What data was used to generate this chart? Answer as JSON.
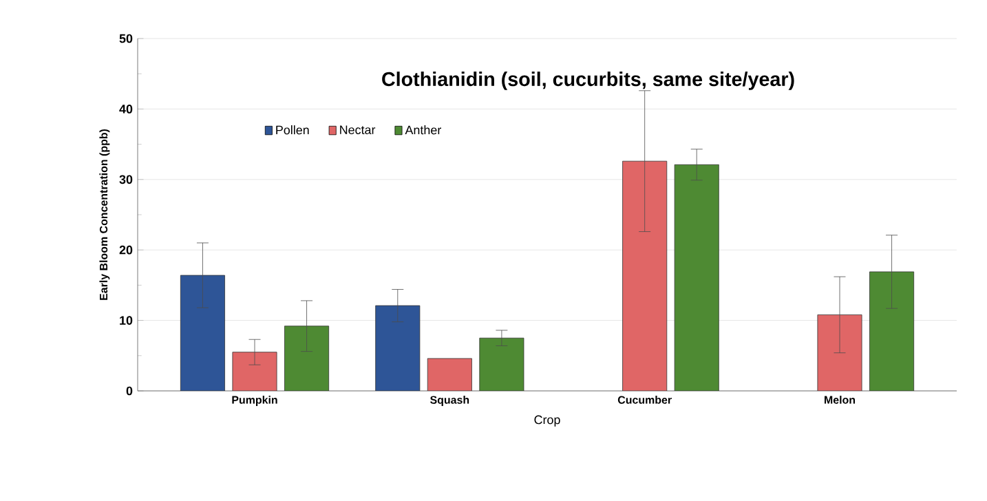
{
  "chart_data": {
    "type": "bar",
    "title": "Clothianidin (soil, cucurbits, same site/year)",
    "xlabel": "Crop",
    "ylabel": "Early Bloom Concentration (ppb)",
    "categories": [
      "Pumpkin",
      "Squash",
      "Cucumber",
      "Melon"
    ],
    "series": [
      {
        "name": "Pollen",
        "color": "#2e5597",
        "values": [
          16.4,
          12.1,
          null,
          null
        ],
        "errors": [
          4.6,
          2.3,
          null,
          null
        ]
      },
      {
        "name": "Nectar",
        "color": "#e06666",
        "values": [
          5.5,
          4.6,
          32.6,
          10.8
        ],
        "errors": [
          1.8,
          null,
          10,
          5.4
        ]
      },
      {
        "name": "Anther",
        "color": "#4e8a33",
        "values": [
          9.2,
          7.5,
          32.1,
          16.9
        ],
        "errors": [
          3.6,
          1.1,
          2.2,
          5.2
        ]
      }
    ],
    "ylim": [
      0,
      50
    ],
    "yticks": [
      0,
      10,
      20,
      30,
      40,
      50
    ],
    "grid": "y",
    "legend": "top"
  }
}
